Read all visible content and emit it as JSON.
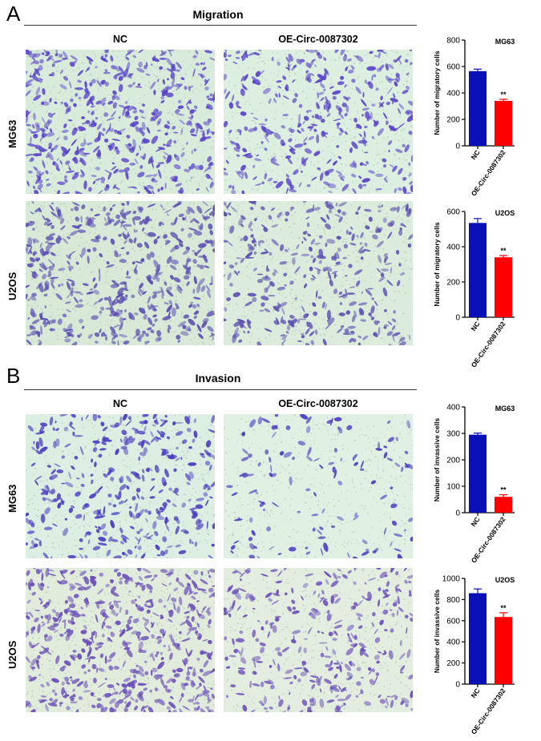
{
  "panels": [
    {
      "letter": "A",
      "title": "Migration",
      "columns": [
        "NC",
        "OE-Circ-0087302"
      ],
      "rows": [
        "MG63",
        "U2OS"
      ]
    },
    {
      "letter": "B",
      "title": "Invasion",
      "columns": [
        "NC",
        "OE-Circ-0087302"
      ],
      "rows": [
        "MG63",
        "U2OS"
      ]
    }
  ],
  "micrographs": [
    {
      "panel": "A",
      "row": "MG63",
      "column": "NC",
      "density": 0.8,
      "stain": "#5a46c8",
      "background": "#d9ecdc"
    },
    {
      "panel": "A",
      "row": "MG63",
      "column": "OE-Circ-0087302",
      "density": 0.55,
      "stain": "#5a46c8",
      "background": "#dcefe0"
    },
    {
      "panel": "A",
      "row": "U2OS",
      "column": "NC",
      "density": 0.75,
      "stain": "#5b4fb0",
      "background": "#d8e9d8"
    },
    {
      "panel": "A",
      "row": "U2OS",
      "column": "OE-Circ-0087302",
      "density": 0.5,
      "stain": "#5b4fb0",
      "background": "#dcecdc"
    },
    {
      "panel": "B",
      "row": "MG63",
      "column": "NC",
      "density": 0.5,
      "stain": "#4a3cc0",
      "background": "#dcefe2"
    },
    {
      "panel": "B",
      "row": "MG63",
      "column": "OE-Circ-0087302",
      "density": 0.12,
      "stain": "#4a3cc0",
      "background": "#e0f1e4"
    },
    {
      "panel": "B",
      "row": "U2OS",
      "column": "NC",
      "density": 0.85,
      "stain": "#6a4fb8",
      "background": "#e1ecdc"
    },
    {
      "panel": "B",
      "row": "U2OS",
      "column": "OE-Circ-0087302",
      "density": 0.45,
      "stain": "#6a4fb8",
      "background": "#e3eee0"
    }
  ],
  "chart_data": [
    {
      "type": "bar",
      "title": "MG63",
      "ylabel": "Number of migratory cells",
      "categories": [
        "NC",
        "OE-Circ-0087302"
      ],
      "values": [
        565,
        340
      ],
      "errors": [
        15,
        12
      ],
      "colors": [
        "#0a10b8",
        "#ff0000"
      ],
      "significance": [
        "",
        "**"
      ],
      "ylim": [
        0,
        800
      ],
      "yticks": [
        0,
        200,
        400,
        600,
        800
      ]
    },
    {
      "type": "bar",
      "title": "U2OS",
      "ylabel": "Number of migratory cells",
      "categories": [
        "NC",
        "OE-Circ-0087302"
      ],
      "values": [
        535,
        340
      ],
      "errors": [
        25,
        10
      ],
      "colors": [
        "#0a10b8",
        "#ff0000"
      ],
      "significance": [
        "",
        "**"
      ],
      "ylim": [
        0,
        600
      ],
      "yticks": [
        0,
        200,
        400,
        600
      ]
    },
    {
      "type": "bar",
      "title": "MG63",
      "ylabel": "Number of invassive cells",
      "categories": [
        "NC",
        "OE-Circ-0087302"
      ],
      "values": [
        295,
        60
      ],
      "errors": [
        6,
        8
      ],
      "colors": [
        "#0a10b8",
        "#ff0000"
      ],
      "significance": [
        "",
        "**"
      ],
      "ylim": [
        0,
        400
      ],
      "yticks": [
        0,
        100,
        200,
        300,
        400
      ]
    },
    {
      "type": "bar",
      "title": "U2OS",
      "ylabel": "Number of invassive cells",
      "categories": [
        "NC",
        "OE-Circ-0087302"
      ],
      "values": [
        860,
        635
      ],
      "errors": [
        40,
        40
      ],
      "colors": [
        "#0a10b8",
        "#ff0000"
      ],
      "significance": [
        "",
        "**"
      ],
      "ylim": [
        0,
        1000
      ],
      "yticks": [
        0,
        200,
        400,
        600,
        800,
        1000
      ]
    }
  ]
}
